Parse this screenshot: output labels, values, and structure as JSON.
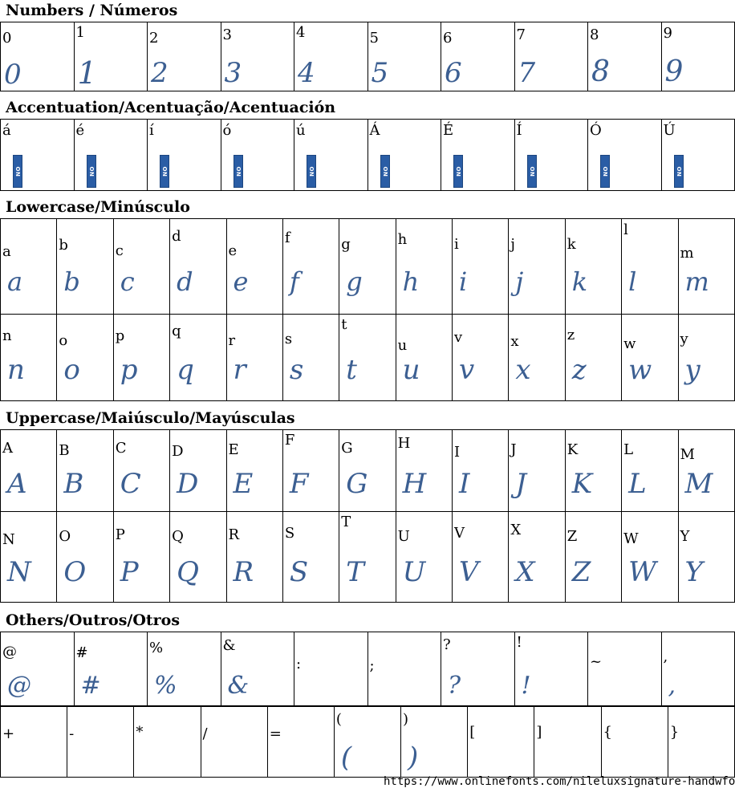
{
  "sections": {
    "numbers": {
      "title": "Numbers / Números",
      "rows": [
        [
          "0",
          "1",
          "2",
          "3",
          "4",
          "5",
          "6",
          "7",
          "8",
          "9"
        ]
      ]
    },
    "accents": {
      "title": "Accentuation/Acentuação/Acentuación",
      "rows": [
        [
          "á",
          "é",
          "í",
          "ó",
          "ú",
          "Á",
          "É",
          "Í",
          "Ó",
          "Ú"
        ]
      ],
      "missing_glyph_text": "NO GLYPH"
    },
    "lowercase": {
      "title": "Lowercase/Minúsculo",
      "rows": [
        [
          "a",
          "b",
          "c",
          "d",
          "e",
          "f",
          "g",
          "h",
          "i",
          "j",
          "k",
          "l",
          "m"
        ],
        [
          "n",
          "o",
          "p",
          "q",
          "r",
          "s",
          "t",
          "u",
          "v",
          "x",
          "z",
          "w",
          "y"
        ]
      ]
    },
    "uppercase": {
      "title": "Uppercase/Maiúsculo/Mayúsculas",
      "rows": [
        [
          "A",
          "B",
          "C",
          "D",
          "E",
          "F",
          "G",
          "H",
          "I",
          "J",
          "K",
          "L",
          "M"
        ],
        [
          "N",
          "O",
          "P",
          "Q",
          "R",
          "S",
          "T",
          "U",
          "V",
          "X",
          "Z",
          "W",
          "Y"
        ]
      ]
    },
    "others": {
      "title": "Others/Outros/Otros",
      "rows": [
        [
          "@",
          "#",
          "%",
          "&",
          ":",
          ";",
          "?",
          "!",
          "~",
          ","
        ],
        [
          "+",
          "-",
          "*",
          "/",
          "=",
          "(",
          ")",
          "[",
          "]",
          "{",
          "}"
        ]
      ],
      "glyphs_rendered": [
        "@",
        "#",
        "%",
        "&",
        "?",
        "!",
        ",",
        "(",
        ")"
      ]
    }
  },
  "footer": "https://www.onlinefonts.com/nileluxsignature-handwfont",
  "colors": {
    "glyph": "#3c5f92",
    "missing_glyph_badge": "#2a5da5"
  }
}
